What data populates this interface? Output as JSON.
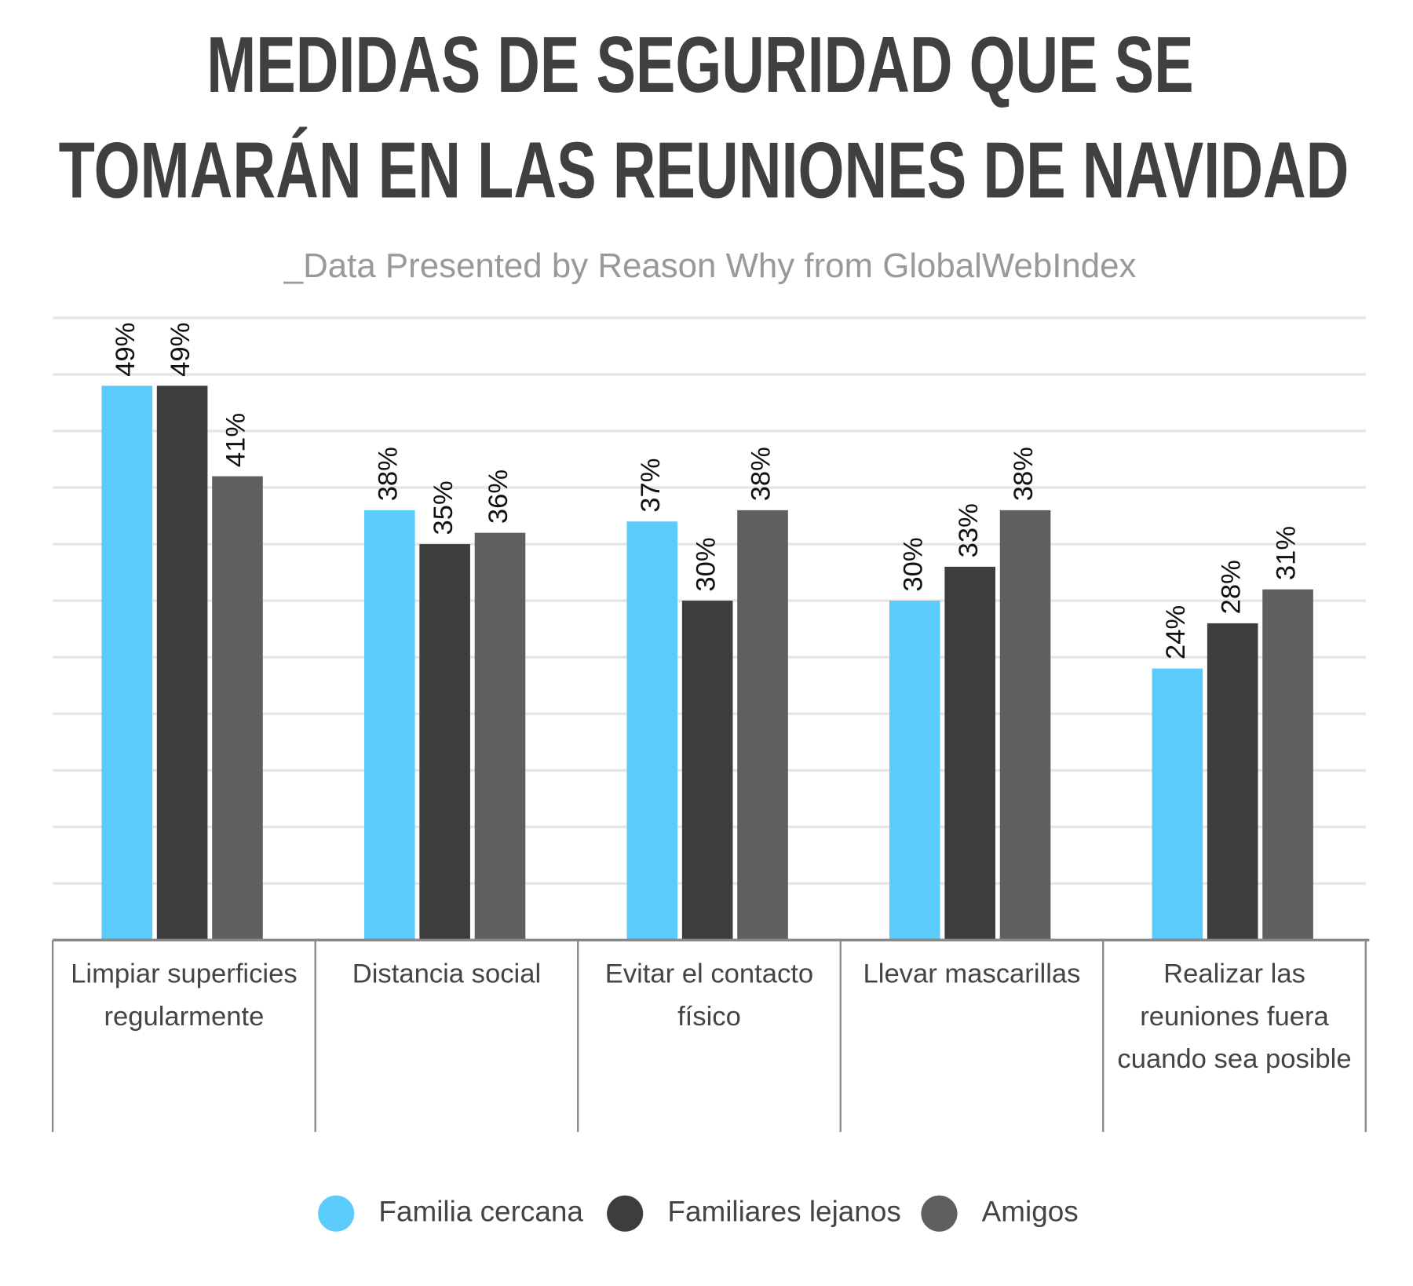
{
  "chart_data": {
    "type": "bar",
    "title": [
      "MEDIDAS DE SEGURIDAD QUE SE",
      "TOMARÁN EN LAS REUNIONES DE NAVIDAD"
    ],
    "subtitle": "_Data Presented by Reason Why from GlobalWebIndex",
    "categories": [
      "Limpiar superficies regularmente",
      "Distancia social",
      "Evitar el contacto físico",
      "Llevar mascarillas",
      "Realizar las reuniones fuera cuando sea posible"
    ],
    "series": [
      {
        "name": "Familia cercana",
        "color": "#5bcbfb",
        "values": [
          49,
          38,
          37,
          30,
          24
        ],
        "value_labels": [
          "49%",
          "38%",
          "37%",
          "30%",
          "24%"
        ]
      },
      {
        "name": "Familiares lejanos",
        "color": "#3d3d3d",
        "values": [
          49,
          35,
          30,
          33,
          28
        ],
        "value_labels": [
          "49%",
          "35%",
          "30%",
          "33%",
          "28%"
        ]
      },
      {
        "name": "Amigos",
        "color": "#5f5f5f",
        "values": [
          41,
          36,
          38,
          38,
          31
        ],
        "value_labels": [
          "41%",
          "36%",
          "38%",
          "38%",
          "31%"
        ]
      }
    ],
    "ylim": [
      0,
      55
    ],
    "yticks": [
      0,
      5,
      10,
      15,
      20,
      25,
      30,
      35,
      40,
      45,
      50,
      55
    ],
    "grid": true
  }
}
